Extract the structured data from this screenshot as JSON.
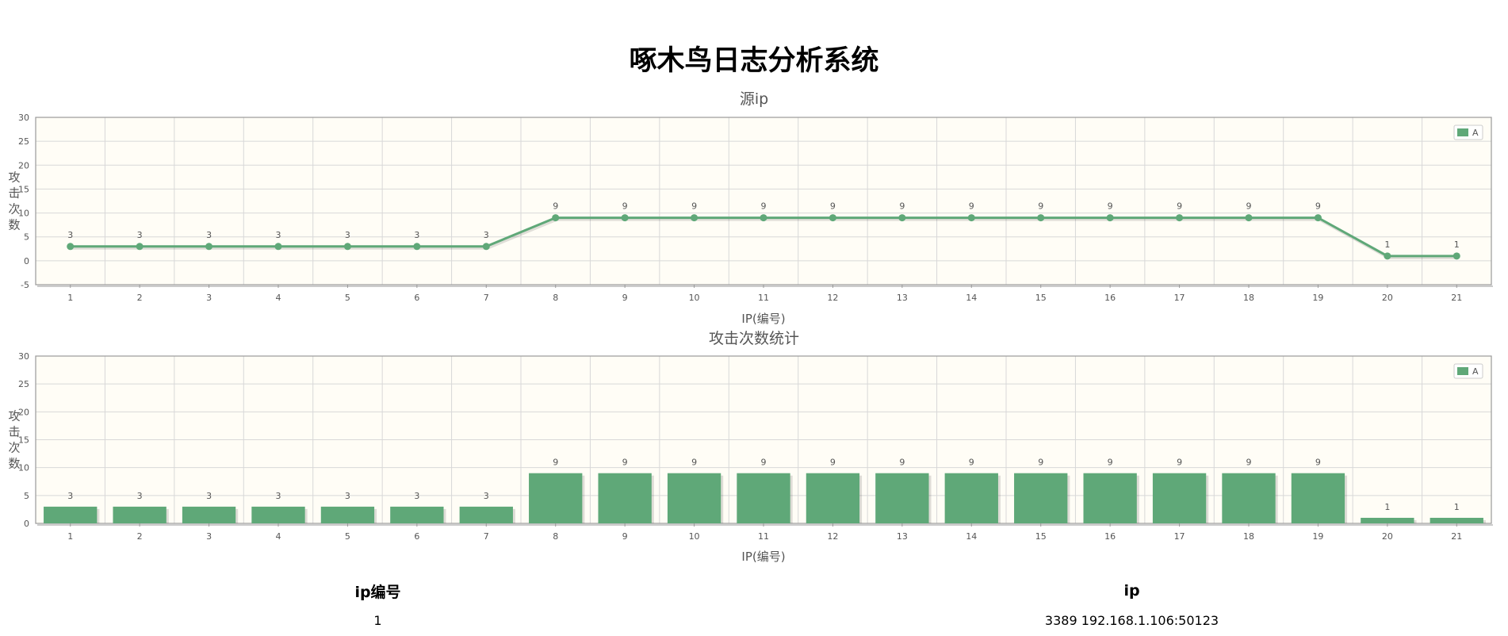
{
  "page": {
    "title": "啄木鸟日志分析系统"
  },
  "chart_data": [
    {
      "type": "line",
      "title": "源ip",
      "xlabel": "IP(编号)",
      "ylabel": "攻击次数",
      "categories": [
        "1",
        "2",
        "3",
        "4",
        "5",
        "6",
        "7",
        "8",
        "9",
        "10",
        "11",
        "12",
        "13",
        "14",
        "15",
        "16",
        "17",
        "18",
        "19",
        "20",
        "21"
      ],
      "series": [
        {
          "name": "A",
          "values": [
            3,
            3,
            3,
            3,
            3,
            3,
            3,
            9,
            9,
            9,
            9,
            9,
            9,
            9,
            9,
            9,
            9,
            9,
            9,
            1,
            1
          ]
        }
      ],
      "ylim": [
        -5,
        30
      ],
      "yticks": [
        -5,
        0,
        5,
        10,
        15,
        20,
        25,
        30
      ],
      "grid": true,
      "legend": "top-right",
      "colors": {
        "series": "#5fa878",
        "plot_bg": "#fffdf6",
        "grid": "#d8d8d8",
        "border": "#999999"
      }
    },
    {
      "type": "bar",
      "title": "攻击次数统计",
      "xlabel": "IP(编号)",
      "ylabel": "攻击次数",
      "categories": [
        "1",
        "2",
        "3",
        "4",
        "5",
        "6",
        "7",
        "8",
        "9",
        "10",
        "11",
        "12",
        "13",
        "14",
        "15",
        "16",
        "17",
        "18",
        "19",
        "20",
        "21"
      ],
      "series": [
        {
          "name": "A",
          "values": [
            3,
            3,
            3,
            3,
            3,
            3,
            3,
            9,
            9,
            9,
            9,
            9,
            9,
            9,
            9,
            9,
            9,
            9,
            9,
            1,
            1
          ]
        }
      ],
      "ylim": [
        0,
        30
      ],
      "yticks": [
        0,
        5,
        10,
        15,
        20,
        25,
        30
      ],
      "grid": true,
      "legend": "top-right",
      "colors": {
        "series": "#5fa878",
        "plot_bg": "#fffdf6",
        "grid": "#d8d8d8",
        "border": "#999999"
      }
    }
  ],
  "table": {
    "headers": {
      "ip_no": "ip编号",
      "ip": "ip"
    },
    "rows": [
      {
        "ip_no": "1",
        "ip": "3389 192.168.1.106:50123"
      }
    ]
  }
}
